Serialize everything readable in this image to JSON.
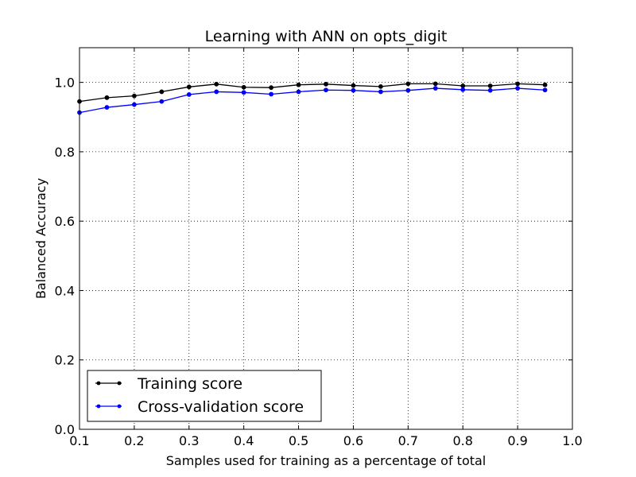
{
  "chart_data": {
    "type": "line",
    "title": "Learning with ANN on opts_digit",
    "xlabel": "Samples used for training as a percentage of total",
    "ylabel": "Balanced Accuracy",
    "xlim": [
      0.1,
      1.0
    ],
    "ylim": [
      0.0,
      1.1
    ],
    "xticks": [
      0.1,
      0.2,
      0.3,
      0.4,
      0.5,
      0.6,
      0.7,
      0.8,
      0.9,
      1.0
    ],
    "xtick_labels": [
      "0.1",
      "0.2",
      "0.3",
      "0.4",
      "0.5",
      "0.6",
      "0.7",
      "0.8",
      "0.9",
      "1.0"
    ],
    "yticks": [
      0.0,
      0.2,
      0.4,
      0.6,
      0.8,
      1.0
    ],
    "ytick_labels": [
      "0.0",
      "0.2",
      "0.4",
      "0.6",
      "0.8",
      "1.0"
    ],
    "grid": true,
    "legend_position": "lower-left",
    "x": [
      0.1,
      0.15,
      0.2,
      0.25,
      0.3,
      0.35,
      0.4,
      0.45,
      0.5,
      0.55,
      0.6,
      0.65,
      0.7,
      0.75,
      0.8,
      0.85,
      0.9,
      0.95
    ],
    "series": [
      {
        "name": "Training score",
        "color": "#000000",
        "values": [
          0.945,
          0.956,
          0.961,
          0.973,
          0.987,
          0.995,
          0.986,
          0.985,
          0.993,
          0.995,
          0.991,
          0.988,
          0.996,
          0.996,
          0.99,
          0.99,
          0.996,
          0.993
        ]
      },
      {
        "name": "Cross-validation score",
        "color": "#0000ff",
        "values": [
          0.913,
          0.928,
          0.936,
          0.945,
          0.965,
          0.973,
          0.971,
          0.966,
          0.973,
          0.978,
          0.977,
          0.973,
          0.977,
          0.983,
          0.979,
          0.977,
          0.983,
          0.978
        ]
      }
    ]
  }
}
